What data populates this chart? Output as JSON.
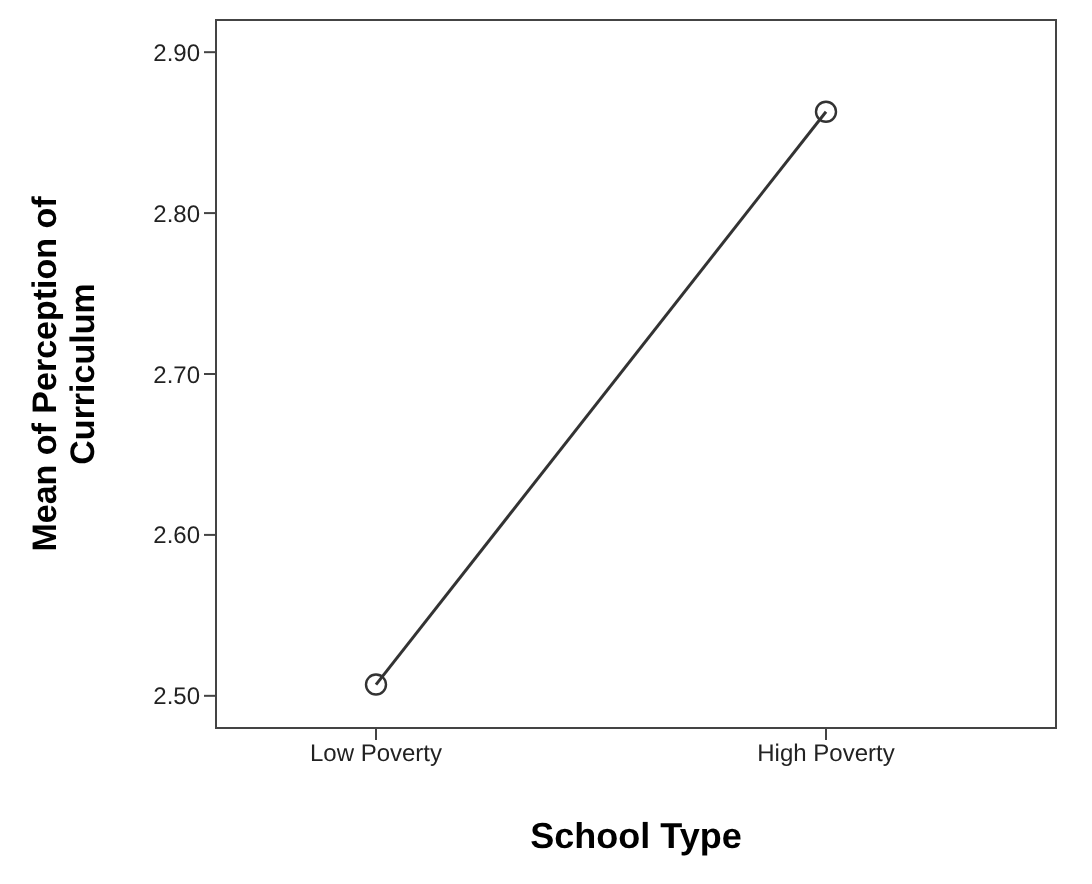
{
  "chart_data": {
    "type": "line",
    "xlabel": "School Type",
    "ylabel": "Mean of Perception of Curriculum",
    "categories": [
      "Low Poverty",
      "High Poverty"
    ],
    "series": [
      {
        "color": "#333333",
        "values": [
          2.507,
          2.863
        ]
      }
    ],
    "ylim": [
      2.48,
      2.92
    ],
    "yticks": [
      {
        "value": 2.5,
        "label": "2.50"
      },
      {
        "value": 2.6,
        "label": "2.60"
      },
      {
        "value": 2.7,
        "label": "2.70"
      },
      {
        "value": 2.8,
        "label": "2.80"
      },
      {
        "value": 2.9,
        "label": "2.90"
      }
    ],
    "marker": "circle",
    "line_style": "solid"
  }
}
